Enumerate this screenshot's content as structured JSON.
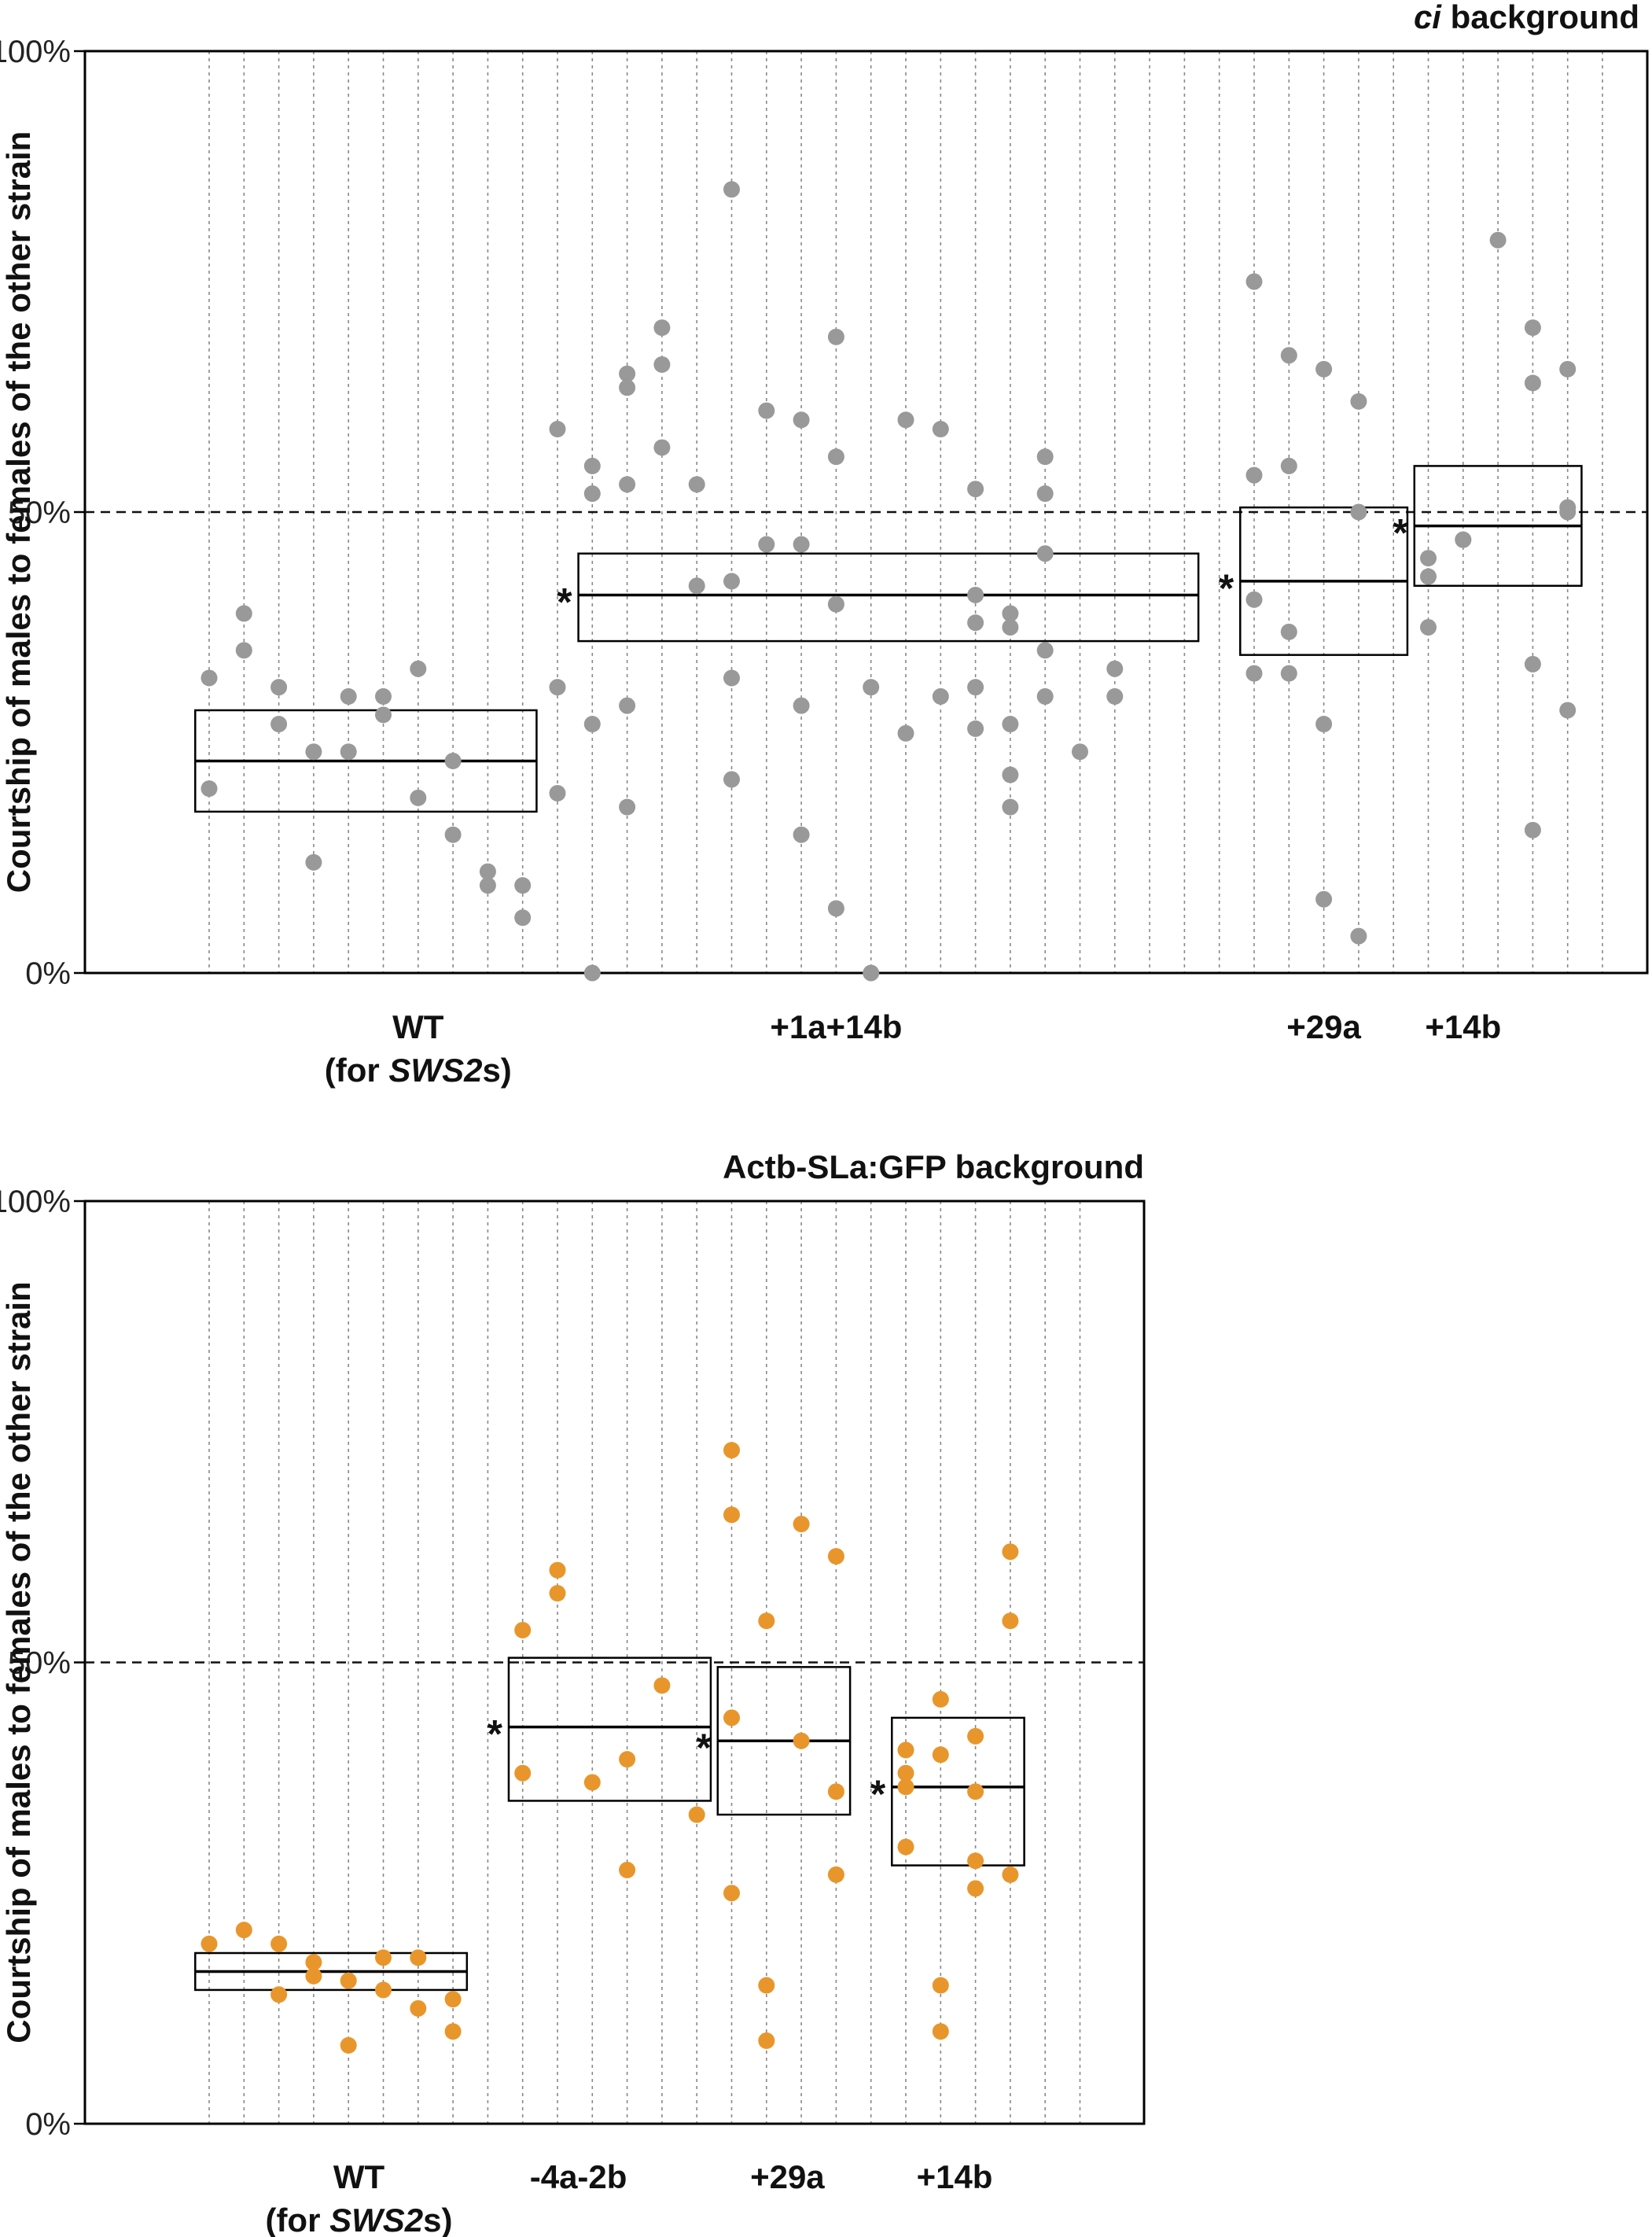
{
  "colors": {
    "panel_a_points": "#999999",
    "panel_b_points": "#E8962B",
    "axis": "#000000",
    "grid": "#888888"
  },
  "chart_data": [
    {
      "type": "scatter",
      "title_italic": "ci",
      "title_rest": " background",
      "ylabel": "Courtship of males to females of the other strain",
      "ylim": [
        0,
        100
      ],
      "yticks": [
        0,
        50,
        100
      ],
      "ytick_labels": [
        "0%",
        "50%",
        "100%"
      ],
      "reference_line": 50,
      "n_columns": 30,
      "groups": [
        {
          "label_lines": [
            [
              {
                "t": "WT",
                "i": false
              }
            ],
            [
              {
                "t": "(for ",
                "i": false
              },
              {
                "t": "SWS2",
                "i": true
              },
              {
                "t": "s)",
                "i": false
              }
            ]
          ],
          "label_x": 7.0,
          "columns": [
            1,
            10
          ],
          "box": {
            "low": 17.5,
            "median": 23.0,
            "high": 28.5
          },
          "significance": "",
          "points": [
            [
              1,
              32
            ],
            [
              1,
              20
            ],
            [
              2,
              39
            ],
            [
              2,
              35
            ],
            [
              3,
              31
            ],
            [
              3,
              27
            ],
            [
              4,
              24
            ],
            [
              4,
              12
            ],
            [
              5,
              30
            ],
            [
              5,
              24
            ],
            [
              6,
              30
            ],
            [
              6,
              28
            ],
            [
              7,
              33
            ],
            [
              7,
              19
            ],
            [
              8,
              23
            ],
            [
              8,
              15
            ],
            [
              9,
              11
            ],
            [
              9,
              9.5
            ],
            [
              10,
              9.5
            ],
            [
              10,
              6
            ]
          ]
        },
        {
          "label_lines": [
            [
              {
                "t": "+1a+14b",
                "i": false
              }
            ]
          ],
          "label_x": 19.0,
          "columns": [
            12,
            29
          ],
          "box": {
            "low": 36.0,
            "median": 41.0,
            "high": 45.5
          },
          "significance": "*",
          "points": [
            [
              11,
              59
            ],
            [
              11,
              31
            ],
            [
              11,
              19.5
            ],
            [
              12,
              55
            ],
            [
              12,
              52
            ],
            [
              12,
              27
            ],
            [
              12,
              0
            ],
            [
              13,
              65
            ],
            [
              13,
              63.5
            ],
            [
              13,
              53
            ],
            [
              13,
              29
            ],
            [
              13,
              18
            ],
            [
              14,
              70
            ],
            [
              14,
              66
            ],
            [
              14,
              57
            ],
            [
              15,
              53
            ],
            [
              15,
              42
            ],
            [
              16,
              85
            ],
            [
              16,
              42.5
            ],
            [
              16,
              32
            ],
            [
              16,
              21
            ],
            [
              17,
              61
            ],
            [
              17,
              46.5
            ],
            [
              18,
              60
            ],
            [
              18,
              46.5
            ],
            [
              18,
              29
            ],
            [
              18,
              15
            ],
            [
              19,
              69
            ],
            [
              19,
              56
            ],
            [
              19,
              40
            ],
            [
              19,
              7
            ],
            [
              20,
              31
            ],
            [
              20,
              0
            ],
            [
              21,
              60
            ],
            [
              21,
              26
            ],
            [
              22,
              59
            ],
            [
              22,
              30
            ],
            [
              23,
              52.5
            ],
            [
              23,
              41
            ],
            [
              23,
              38
            ],
            [
              23,
              31
            ],
            [
              23,
              26.5
            ],
            [
              24,
              39
            ],
            [
              24,
              37.5
            ],
            [
              24,
              27
            ],
            [
              24,
              21.5
            ],
            [
              24,
              18
            ],
            [
              25,
              56
            ],
            [
              25,
              52
            ],
            [
              25,
              45.5
            ],
            [
              25,
              35
            ],
            [
              25,
              30
            ],
            [
              26,
              24
            ],
            [
              27,
              33
            ],
            [
              27,
              30
            ]
          ]
        },
        {
          "label_lines": [
            [
              {
                "t": "+29a",
                "i": false
              }
            ]
          ],
          "label_x": 33.0,
          "columns": [
            31,
            35
          ],
          "box": {
            "low": 34.5,
            "median": 42.5,
            "high": 50.5
          },
          "significance": "*",
          "points": [
            [
              31,
              75
            ],
            [
              31,
              54
            ],
            [
              31,
              40.5
            ],
            [
              31,
              32.5
            ],
            [
              32,
              67
            ],
            [
              32,
              55
            ],
            [
              32,
              37
            ],
            [
              32,
              32.5
            ],
            [
              33,
              65.5
            ],
            [
              33,
              27
            ],
            [
              33,
              8
            ],
            [
              34,
              62
            ],
            [
              34,
              50
            ],
            [
              34,
              4
            ]
          ]
        },
        {
          "label_lines": [
            [
              {
                "t": "+14b",
                "i": false
              }
            ]
          ],
          "label_x": 37.0,
          "columns": [
            36,
            40
          ],
          "box": {
            "low": 42.0,
            "median": 48.5,
            "high": 55.0
          },
          "significance": "*",
          "points": [
            [
              36,
              45
            ],
            [
              36,
              43
            ],
            [
              36,
              37.5
            ],
            [
              37,
              47
            ],
            [
              37,
              47
            ],
            [
              38,
              79.5
            ],
            [
              39,
              70
            ],
            [
              39,
              64
            ],
            [
              39,
              33.5
            ],
            [
              39,
              15.5
            ],
            [
              40,
              65.5
            ],
            [
              40,
              50.5
            ],
            [
              40,
              50
            ],
            [
              40,
              28.5
            ]
          ]
        }
      ]
    },
    {
      "type": "scatter",
      "title_italic": "",
      "title_rest": "Actb-SLa:GFP background",
      "ylabel": "Courtship of males to females of the other strain",
      "ylim": [
        0,
        100
      ],
      "yticks": [
        0,
        50,
        100
      ],
      "ytick_labels": [
        "0%",
        "50%",
        "100%"
      ],
      "reference_line": 50,
      "n_columns": 26,
      "groups": [
        {
          "label_lines": [
            [
              {
                "t": "WT",
                "i": false
              }
            ],
            [
              {
                "t": "(for ",
                "i": false
              },
              {
                "t": "SWS2",
                "i": true
              },
              {
                "t": "s)",
                "i": false
              }
            ]
          ],
          "label_x": 5.3,
          "columns": [
            1,
            8
          ],
          "box": {
            "low": 14.5,
            "median": 16.5,
            "high": 18.5
          },
          "significance": "",
          "points": [
            [
              1,
              19.5
            ],
            [
              2,
              21
            ],
            [
              3,
              19.5
            ],
            [
              3,
              14
            ],
            [
              4,
              17.5
            ],
            [
              4,
              16
            ],
            [
              5,
              15.5
            ],
            [
              5,
              8.5
            ],
            [
              6,
              18
            ],
            [
              6,
              14.5
            ],
            [
              7,
              18
            ],
            [
              7,
              12.5
            ],
            [
              8,
              13.5
            ],
            [
              8,
              10
            ]
          ]
        },
        {
          "label_lines": [
            [
              {
                "t": "-4a-2b",
                "i": false
              }
            ]
          ],
          "label_x": 11.6,
          "columns": [
            10,
            15
          ],
          "box": {
            "low": 35.0,
            "median": 43.0,
            "high": 50.5
          },
          "significance": "*",
          "points": [
            [
              10,
              53.5
            ],
            [
              10,
              38
            ],
            [
              11,
              60
            ],
            [
              11,
              57.5
            ],
            [
              12,
              37
            ],
            [
              13,
              39.5
            ],
            [
              13,
              27.5
            ],
            [
              14,
              47.5
            ],
            [
              15,
              33.5
            ]
          ]
        },
        {
          "label_lines": [
            [
              {
                "t": "+29a",
                "i": false
              }
            ]
          ],
          "label_x": 17.6,
          "columns": [
            16,
            19
          ],
          "box": {
            "low": 33.5,
            "median": 41.5,
            "high": 49.5
          },
          "significance": "*",
          "points": [
            [
              16,
              73
            ],
            [
              16,
              66
            ],
            [
              16,
              44
            ],
            [
              16,
              25
            ],
            [
              17,
              54.5
            ],
            [
              17,
              15
            ],
            [
              17,
              9
            ],
            [
              18,
              65
            ],
            [
              18,
              41.5
            ],
            [
              19,
              61.5
            ],
            [
              19,
              36
            ],
            [
              19,
              27
            ]
          ]
        },
        {
          "label_lines": [
            [
              {
                "t": "+14b",
                "i": false
              }
            ]
          ],
          "label_x": 22.4,
          "columns": [
            21,
            24
          ],
          "box": {
            "low": 28.0,
            "median": 36.5,
            "high": 44.0
          },
          "significance": "*",
          "points": [
            [
              21,
              40.5
            ],
            [
              21,
              38
            ],
            [
              21,
              36.5
            ],
            [
              21,
              30
            ],
            [
              22,
              46
            ],
            [
              22,
              40
            ],
            [
              22,
              15
            ],
            [
              22,
              10
            ],
            [
              23,
              42
            ],
            [
              23,
              36
            ],
            [
              23,
              28.5
            ],
            [
              23,
              25.5
            ],
            [
              24,
              62
            ],
            [
              24,
              54.5
            ],
            [
              24,
              27
            ]
          ]
        }
      ]
    }
  ]
}
